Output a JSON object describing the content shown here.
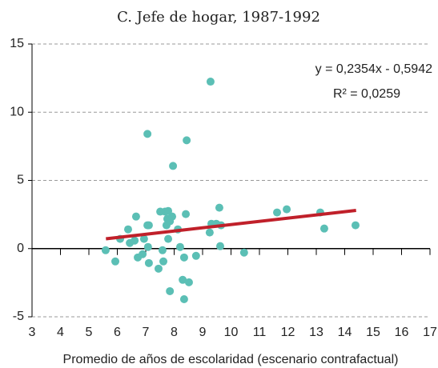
{
  "chart_data": {
    "type": "scatter",
    "title": "C. Jefe de hogar, 1987-1992",
    "xlabel": "Promedio de años de escolaridad (escenario contrafactual)",
    "annotations": [
      "y = 0,2354x - 0,5942",
      "R² = 0,0259"
    ],
    "xlim": [
      3,
      17
    ],
    "xticks": [
      3,
      4,
      5,
      6,
      7,
      8,
      9,
      10,
      11,
      12,
      13,
      14,
      15,
      16,
      17
    ],
    "ylim": [
      -5,
      15
    ],
    "yticks": [
      -5,
      0,
      5,
      10,
      15
    ],
    "grid": true,
    "series": [
      {
        "color": "#5bbfb5",
        "x": [
          5.59,
          5.93,
          6.1,
          6.38,
          6.44,
          6.61,
          6.66,
          6.72,
          6.89,
          6.94,
          7.06,
          7.06,
          7.11,
          7.08,
          7.11,
          7.45,
          7.51,
          7.59,
          7.62,
          7.68,
          7.73,
          7.76,
          7.79,
          7.79,
          7.85,
          7.85,
          7.93,
          7.96,
          8.13,
          8.21,
          8.3,
          8.35,
          8.35,
          8.41,
          8.44,
          8.52,
          8.77,
          9.25,
          9.28,
          9.31,
          9.48,
          9.59,
          9.62,
          9.65,
          10.46,
          11.62,
          11.96,
          13.14,
          13.28,
          14.38
        ],
        "values": [
          -0.12,
          -0.94,
          0.71,
          1.41,
          0.41,
          0.59,
          2.35,
          -0.65,
          -0.41,
          0.71,
          8.41,
          1.71,
          1.71,
          0.12,
          -1.06,
          -1.47,
          2.71,
          -0.12,
          -0.94,
          2.71,
          1.71,
          2.18,
          2.76,
          0.71,
          -3.12,
          2.0,
          2.35,
          6.06,
          1.41,
          0.12,
          -2.29,
          -0.65,
          -3.71,
          2.53,
          7.94,
          -2.47,
          -0.53,
          1.18,
          12.24,
          1.82,
          1.82,
          3.0,
          0.18,
          1.71,
          -0.29,
          2.65,
          2.88,
          2.65,
          1.47,
          1.71
        ]
      }
    ],
    "trendline": {
      "x": [
        5.6,
        14.4
      ],
      "y": [
        0.72,
        2.8
      ],
      "color": "#c0202a"
    }
  }
}
